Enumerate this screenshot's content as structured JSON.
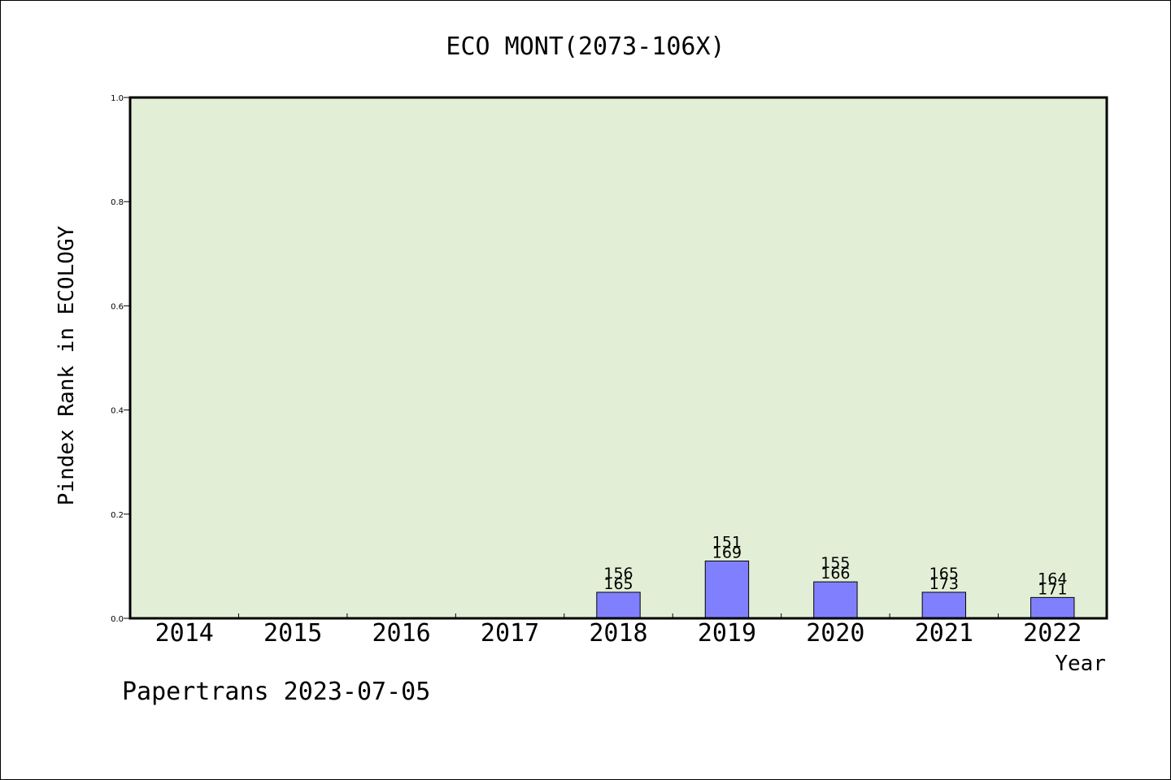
{
  "footer": "Papertrans 2023-07-05",
  "chart_data": {
    "type": "bar",
    "title": "ECO MONT(2073-106X)",
    "xlabel": "Year",
    "ylabel": "Pindex Rank in ECOLOGY",
    "ylim": [
      0,
      1.0
    ],
    "yticks": [
      "0.0",
      "0.2",
      "0.4",
      "0.6",
      "0.8",
      "1.0"
    ],
    "categories": [
      "2014",
      "2015",
      "2016",
      "2017",
      "2018",
      "2019",
      "2020",
      "2021",
      "2022"
    ],
    "values": [
      null,
      null,
      null,
      null,
      0.05,
      0.11,
      0.07,
      0.05,
      0.04
    ],
    "labels_top": [
      "",
      "",
      "",
      "",
      "156",
      "151",
      "155",
      "165",
      "164"
    ],
    "labels_bottom": [
      "",
      "",
      "",
      "",
      "165",
      "169",
      "166",
      "173",
      "171"
    ],
    "grid": false,
    "colors": {
      "plot_background": "#e2efd6",
      "bar_fill": "#8080ff",
      "bar_stroke": "#000000"
    }
  }
}
